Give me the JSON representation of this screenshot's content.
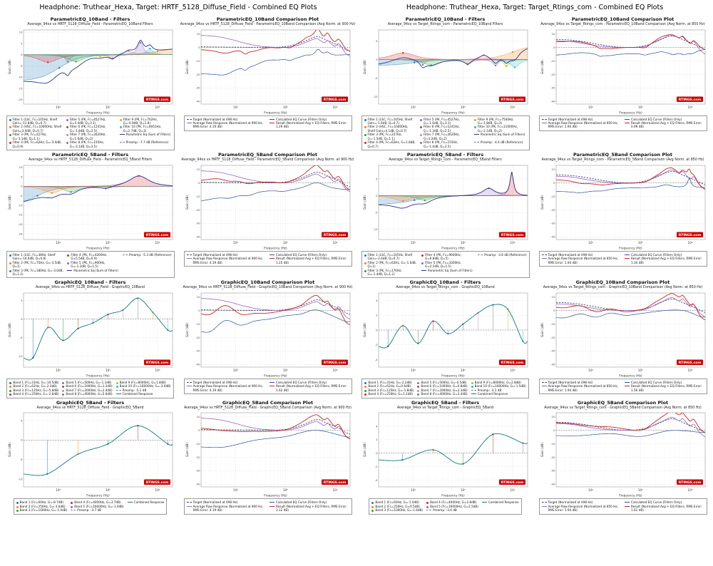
{
  "headers": [
    {
      "text": "Headphone: Truthear_Hexa, Target: HRTF_5128_Diffuse_Field - Combined EQ Plots"
    },
    {
      "text": "Headphone: Truthear_Hexa, Target: Target_Rtings_com - Combined EQ Plots"
    }
  ],
  "watermark": {
    "text": "RTINGS.com",
    "bg": "#cc0000",
    "fg": "#ffffff"
  },
  "palette": [
    "#1f77b4",
    "#ff7f0e",
    "#2ca02c",
    "#d62728",
    "#9467bd",
    "#8c564b",
    "#e377c2",
    "#7f7f7f",
    "#bcbd22",
    "#17becf"
  ],
  "series_colors": {
    "target": "#3b3b60",
    "raw": "#9467bd",
    "eq": "#30509c",
    "result": "#c62828",
    "sum": "#283593",
    "combined": "#117a7a",
    "preamp": "#777777"
  },
  "axis": {
    "xlabel": "Frequency (Hz)",
    "ylabel": "Gain (dB)",
    "xlim": [
      20,
      20000
    ],
    "xticks": [
      100,
      1000,
      10000
    ],
    "xtick_labels": [
      "10²",
      "10³",
      "10⁴"
    ]
  },
  "curves": {
    "L_target": [
      [
        20,
        0.5
      ],
      [
        50,
        0.3
      ],
      [
        120,
        0.2
      ],
      [
        300,
        0.1
      ],
      [
        500,
        0
      ],
      [
        800,
        0.3
      ],
      [
        1200,
        1.2
      ],
      [
        1800,
        2.8
      ],
      [
        2600,
        5
      ],
      [
        3500,
        7.2
      ],
      [
        4300,
        8
      ],
      [
        5000,
        7.6
      ],
      [
        6000,
        6.2
      ],
      [
        7000,
        5.2
      ],
      [
        8000,
        4.2
      ],
      [
        10000,
        2.6
      ],
      [
        12500,
        1
      ],
      [
        16000,
        -1.4
      ],
      [
        20000,
        -3
      ]
    ],
    "L_raw": [
      [
        20,
        9
      ],
      [
        40,
        8.2
      ],
      [
        80,
        6
      ],
      [
        150,
        3.2
      ],
      [
        300,
        1
      ],
      [
        500,
        0.3
      ],
      [
        900,
        0
      ],
      [
        1300,
        0.6
      ],
      [
        2000,
        2.2
      ],
      [
        2800,
        4.4
      ],
      [
        3600,
        6
      ],
      [
        4300,
        6.6
      ],
      [
        5000,
        5.2
      ],
      [
        6000,
        3.6
      ],
      [
        7000,
        5.2
      ],
      [
        8000,
        3.4
      ],
      [
        9000,
        1.6
      ],
      [
        10000,
        1
      ],
      [
        11500,
        2.8
      ],
      [
        13000,
        1.2
      ],
      [
        15000,
        -2.6
      ],
      [
        17000,
        -5
      ],
      [
        20000,
        -6.5
      ]
    ],
    "R_target": [
      [
        20,
        6
      ],
      [
        40,
        5.5
      ],
      [
        80,
        4
      ],
      [
        150,
        2.2
      ],
      [
        300,
        0.6
      ],
      [
        500,
        0.1
      ],
      [
        850,
        0.3
      ],
      [
        1300,
        1.6
      ],
      [
        2000,
        4
      ],
      [
        3000,
        7
      ],
      [
        4000,
        8.4
      ],
      [
        5000,
        8.2
      ],
      [
        6000,
        7
      ],
      [
        8000,
        5
      ],
      [
        10000,
        3.6
      ],
      [
        12000,
        2.2
      ],
      [
        15000,
        0.6
      ],
      [
        20000,
        -1.6
      ]
    ],
    "R_raw": [
      [
        20,
        5
      ],
      [
        40,
        4.4
      ],
      [
        80,
        2.6
      ],
      [
        150,
        1
      ],
      [
        300,
        0.2
      ],
      [
        500,
        0
      ],
      [
        850,
        0
      ],
      [
        1300,
        1
      ],
      [
        2000,
        4.4
      ],
      [
        2800,
        6.8
      ],
      [
        3600,
        8.8
      ],
      [
        4300,
        9.6
      ],
      [
        5000,
        8.6
      ],
      [
        6000,
        7
      ],
      [
        7000,
        8.6
      ],
      [
        8000,
        6.4
      ],
      [
        9000,
        4.4
      ],
      [
        10000,
        3
      ],
      [
        11500,
        4.6
      ],
      [
        13000,
        2.6
      ],
      [
        15000,
        -1
      ],
      [
        17000,
        -3
      ],
      [
        20000,
        -5
      ]
    ]
  },
  "chart_data": [
    {
      "type": "line",
      "kind": "filters",
      "title": "ParametricEQ_10Band - Filters",
      "subtitle": "Average_94xx vs HRTF_5128_Diffuse_Field - ParametricEQ_10Band Filters",
      "ylim": [
        -22,
        11
      ],
      "yticks": [
        10,
        5,
        0,
        -5,
        -10,
        -15,
        -20
      ],
      "legend_cols": 3,
      "preamp": -7.7,
      "filters": [
        {
          "kind": "LSC",
          "fc": 105,
          "gain": -11.8,
          "q": 0.7
        },
        {
          "kind": "HSC",
          "fc": 10000,
          "gain": 3.0,
          "q": 0.7
        },
        {
          "kind": "PK",
          "fc": 227,
          "gain": -3.1,
          "q": 1.1
        },
        {
          "kind": "PK",
          "fc": 62,
          "gain": -3.4,
          "q": 0.9
        },
        {
          "kind": "PK",
          "fc": 4527,
          "gain": 5.4,
          "q": 3.1
        },
        {
          "kind": "PK",
          "fc": 1241,
          "gain": -1.8,
          "q": 2.5
        },
        {
          "kind": "PK",
          "fc": 2620,
          "gain": 1.6,
          "q": 2.0
        },
        {
          "kind": "PK",
          "fc": 155,
          "gain": -3.1,
          "q": 3.5
        },
        {
          "kind": "PK",
          "fc": 702,
          "gain": -0.9,
          "q": 1.8
        },
        {
          "kind": "PK",
          "fc": 6951,
          "gain": 2.7,
          "q": 3.0
        }
      ]
    },
    {
      "type": "line",
      "kind": "comparison",
      "title": "ParametricEQ_10Band Comparison Plot",
      "subtitle": "Average_94xx vs HRTF_5128_Diffuse_Field - ParametricEQ_10Band Comparison (Avg Norm. at 900 Hz)",
      "ylim": [
        -42,
        13
      ],
      "yticks": [
        10,
        0,
        -10,
        -20,
        -30,
        -40
      ],
      "legend_cols": 2,
      "eq_from": 0,
      "raw_curve": "L_raw",
      "target_curve": "L_target",
      "norm_hz": 900,
      "target_norm_hz": 498,
      "rms_raw": 4.19,
      "rms_result": 1.29
    },
    {
      "type": "line",
      "kind": "filters",
      "title": "ParametricEQ_10Band - Filters",
      "subtitle": "Average_94xx vs Target_Rtings_com - ParametricEQ_10Band Filters",
      "ylim": [
        -12,
        8
      ],
      "yticks": [
        5,
        0,
        -5,
        -10
      ],
      "legend_cols": 3,
      "preamp": -4.4,
      "filters": [
        {
          "kind": "LSC",
          "fc": 105,
          "gain": -1.6,
          "q": 0.7
        },
        {
          "kind": "HSC",
          "fc": 10000,
          "gain": 4.1,
          "q": 0.7
        },
        {
          "kind": "PK",
          "fc": 227,
          "gain": -1.5,
          "q": 1.1
        },
        {
          "kind": "PK",
          "fc": 62,
          "gain": 1.8,
          "q": 0.7
        },
        {
          "kind": "PK",
          "fc": 4527,
          "gain": -1.6,
          "q": 3.1
        },
        {
          "kind": "PK",
          "fc": 1241,
          "gain": -1.3,
          "q": 2.5
        },
        {
          "kind": "PK",
          "fc": 2620,
          "gain": 1.2,
          "q": 2.0
        },
        {
          "kind": "PK",
          "fc": 155,
          "gain": -1.4,
          "q": 3.5
        },
        {
          "kind": "PK",
          "fc": 7500,
          "gain": -1.8,
          "q": 3.0
        },
        {
          "kind": "PK",
          "fc": 11000,
          "gain": -2.1,
          "q": 2.0
        }
      ]
    },
    {
      "type": "line",
      "kind": "comparison",
      "title": "ParametricEQ_10Band Comparison Plot",
      "subtitle": "Average_94xx vs Target_Rtings_com - ParametricEQ_10Band Comparison (Avg Norm. at 850 Hz)",
      "ylim": [
        -42,
        13
      ],
      "yticks": [
        10,
        0,
        -10,
        -20,
        -30,
        -40
      ],
      "legend_cols": 2,
      "eq_from": 2,
      "raw_curve": "R_raw",
      "target_curve": "R_target",
      "norm_hz": 850,
      "target_norm_hz": 498,
      "rms_raw": 1.94,
      "rms_result": 0.99
    },
    {
      "type": "line",
      "kind": "filters",
      "title": "ParametricEQ_5Band - Filters",
      "subtitle": "Average_94xx vs HRTF_5128_Diffuse_Field - ParametricEQ_5Band Filters",
      "ylim": [
        -28,
        11
      ],
      "yticks": [
        10,
        5,
        0,
        -5,
        -10,
        -15,
        -20,
        -25
      ],
      "legend_cols": 3,
      "preamp": -5.3,
      "filters": [
        {
          "kind": "LSC",
          "fc": 38,
          "gain": -10.0,
          "q": 0.8
        },
        {
          "kind": "PK",
          "fc": 75,
          "gain": -3.5,
          "q": 1.0
        },
        {
          "kind": "PK",
          "fc": 180,
          "gain": -3.0,
          "q": 1.2
        },
        {
          "kind": "PK",
          "fc": 4200,
          "gain": 5.5,
          "q": 0.9
        },
        {
          "kind": "PK",
          "fc": 900,
          "gain": -1.2,
          "q": 1.5
        }
      ]
    },
    {
      "type": "line",
      "kind": "comparison",
      "title": "ParametricEQ_5Band Comparison Plot",
      "subtitle": "Average_94xx vs HRTF_5128_Diffuse_Field - ParametricEQ_5Band Comparison (Avg Norm. at 900 Hz)",
      "ylim": [
        -42,
        13
      ],
      "yticks": [
        10,
        0,
        -10,
        -20,
        -30,
        -40
      ],
      "legend_cols": 2,
      "eq_from": 4,
      "raw_curve": "L_raw",
      "target_curve": "L_target",
      "norm_hz": 900,
      "target_norm_hz": 498,
      "rms_raw": 4.19,
      "rms_result": 1.25
    },
    {
      "type": "line",
      "kind": "filters",
      "title": "ParametricEQ_5Band - Filters",
      "subtitle": "Average_94xx vs Target_Rtings_com - ParametricEQ_5Band Filters",
      "ylim": [
        -13,
        9
      ],
      "yticks": [
        5,
        0,
        -5,
        -10
      ],
      "legend_cols": 3,
      "preamp": -3.6,
      "filters": [
        {
          "kind": "LSC",
          "fc": 105,
          "gain": -2.6,
          "q": 0.7
        },
        {
          "kind": "PK",
          "fc": 62,
          "gain": -1.6,
          "q": 1.0
        },
        {
          "kind": "PK",
          "fc": 170,
          "gain": -1.4,
          "q": 1.2
        },
        {
          "kind": "PK",
          "fc": 9600,
          "gain": 6.8,
          "q": 5.0
        },
        {
          "kind": "PK",
          "fc": 3300,
          "gain": 2.2,
          "q": 1.5
        }
      ]
    },
    {
      "type": "line",
      "kind": "comparison",
      "title": "ParametricEQ_5Band Comparison Plot",
      "subtitle": "Average_94xx vs Target_Rtings_com - ParametricEQ_5Band Comparison (Avg Norm. at 850 Hz)",
      "ylim": [
        -42,
        13
      ],
      "yticks": [
        10,
        0,
        -10,
        -20,
        -30,
        -40
      ],
      "legend_cols": 2,
      "eq_from": 6,
      "raw_curve": "R_raw",
      "target_curve": "R_target",
      "norm_hz": 850,
      "target_norm_hz": 498,
      "rms_raw": 1.94,
      "rms_result": 1.34
    },
    {
      "type": "line",
      "kind": "graphic",
      "title": "GraphicEQ_10Band - Filters",
      "subtitle": "Average_94xx vs HRTF_5128_Diffuse_Field - GraphicEQ_10Band",
      "ylim": [
        -13,
        7
      ],
      "yticks": [
        5,
        0,
        -5,
        -10
      ],
      "legend_cols": 3,
      "preamp": -5.1,
      "bands": [
        {
          "fc": 31,
          "gain": -10.5
        },
        {
          "fc": 62,
          "gain": -2.3
        },
        {
          "fc": 125,
          "gain": -5.8
        },
        {
          "fc": 250,
          "gain": -2.6
        },
        {
          "fc": 500,
          "gain": -1.1
        },
        {
          "fc": 1000,
          "gain": 1.2
        },
        {
          "fc": 2000,
          "gain": 2.4
        },
        {
          "fc": 4000,
          "gain": 5.6
        },
        {
          "fc": 8000,
          "gain": 1.8
        },
        {
          "fc": 16000,
          "gain": -3.0
        }
      ]
    },
    {
      "type": "line",
      "kind": "comparison",
      "title": "GraphicEQ_10Band Comparison Plot",
      "subtitle": "Average_94xx vs HRTF_5128_Diffuse_Field - GraphicEQ_10Band Comparison (Avg Norm. at 900 Hz)",
      "ylim": [
        -42,
        13
      ],
      "yticks": [
        10,
        0,
        -10,
        -20,
        -30,
        -40
      ],
      "legend_cols": 2,
      "eq_from": 8,
      "raw_curve": "L_raw",
      "target_curve": "L_target",
      "norm_hz": 900,
      "target_norm_hz": 498,
      "rms_raw": 4.19,
      "rms_result": 1.62
    },
    {
      "type": "line",
      "kind": "graphic",
      "title": "GraphicEQ_10Band - Filters",
      "subtitle": "Average_94xx vs Target_Rtings_com - GraphicEQ_10Band",
      "ylim": [
        -5,
        5
      ],
      "yticks": [
        4,
        2,
        0,
        -2,
        -4
      ],
      "legend_cols": 3,
      "preamp": -3.1,
      "bands": [
        {
          "fc": 31,
          "gain": -2.2
        },
        {
          "fc": 62,
          "gain": 0.6
        },
        {
          "fc": 125,
          "gain": -1.8
        },
        {
          "fc": 250,
          "gain": 1.2
        },
        {
          "fc": 500,
          "gain": -0.5
        },
        {
          "fc": 1000,
          "gain": 0.8
        },
        {
          "fc": 2000,
          "gain": 2.3
        },
        {
          "fc": 4000,
          "gain": 3.4
        },
        {
          "fc": 8000,
          "gain": 2.8
        },
        {
          "fc": 16000,
          "gain": -1.5
        }
      ]
    },
    {
      "type": "line",
      "kind": "comparison",
      "title": "GraphicEQ_10Band Comparison Plot",
      "subtitle": "Average_94xx vs Target_Rtings_com - GraphicEQ_10Band Comparison (Avg Norm. at 850 Hz)",
      "ylim": [
        -42,
        13
      ],
      "yticks": [
        10,
        0,
        -10,
        -20,
        -30,
        -40
      ],
      "legend_cols": 2,
      "eq_from": 10,
      "raw_curve": "R_raw",
      "target_curve": "R_target",
      "norm_hz": 850,
      "target_norm_hz": 498,
      "rms_raw": 1.94,
      "rms_result": 1.56
    },
    {
      "type": "line",
      "kind": "graphic",
      "title": "GraphicEQ_5Band - Filters",
      "subtitle": "Average_94xx vs HRTF_5128_Diffuse_Field - GraphicEQ_5Band",
      "ylim": [
        -12,
        7
      ],
      "yticks": [
        5,
        0,
        -5,
        -10
      ],
      "legend_cols": 3,
      "preamp": -3.7,
      "bands": [
        {
          "fc": 60,
          "gain": -8.7
        },
        {
          "fc": 250,
          "gain": -3.6
        },
        {
          "fc": 1000,
          "gain": -1.0
        },
        {
          "fc": 4000,
          "gain": 3.7
        },
        {
          "fc": 16000,
          "gain": -1.0
        }
      ]
    },
    {
      "type": "line",
      "kind": "comparison",
      "title": "GraphicEQ_5Band Comparison Plot",
      "subtitle": "Average_94xx vs HRTF_5128_Diffuse_Field - GraphicEQ_5Band Comparison (Avg Norm. at 900 Hz)",
      "ylim": [
        -42,
        13
      ],
      "yticks": [
        10,
        0,
        -10,
        -20,
        -30,
        -40
      ],
      "legend_cols": 2,
      "eq_from": 12,
      "raw_curve": "L_raw",
      "target_curve": "L_target",
      "norm_hz": 900,
      "target_norm_hz": 498,
      "rms_raw": 4.19,
      "rms_result": 3.12
    },
    {
      "type": "line",
      "kind": "graphic",
      "title": "GraphicEQ_5Band - Filters",
      "subtitle": "Average_94xx vs Target_Rtings_com - GraphicEQ_5Band",
      "ylim": [
        -5,
        6
      ],
      "yticks": [
        4,
        2,
        0,
        -2,
        -4
      ],
      "legend_cols": 3,
      "preamp": -3.0,
      "bands": [
        {
          "fc": 60,
          "gain": -1.0
        },
        {
          "fc": 250,
          "gain": 0.5
        },
        {
          "fc": 1000,
          "gain": -1.6
        },
        {
          "fc": 4000,
          "gain": 2.8
        },
        {
          "fc": 16000,
          "gain": 1.5
        }
      ]
    },
    {
      "type": "line",
      "kind": "comparison",
      "title": "GraphicEQ_5Band Comparison Plot",
      "subtitle": "Average_94xx vs Target_Rtings_com - GraphicEQ_5Band Comparison (Avg Norm. at 850 Hz)",
      "ylim": [
        -42,
        13
      ],
      "yticks": [
        10,
        0,
        -10,
        -20,
        -30,
        -40
      ],
      "legend_cols": 2,
      "eq_from": 14,
      "raw_curve": "R_raw",
      "target_curve": "R_target",
      "norm_hz": 850,
      "target_norm_hz": 498,
      "rms_raw": 1.94,
      "rms_result": 1.61
    }
  ]
}
